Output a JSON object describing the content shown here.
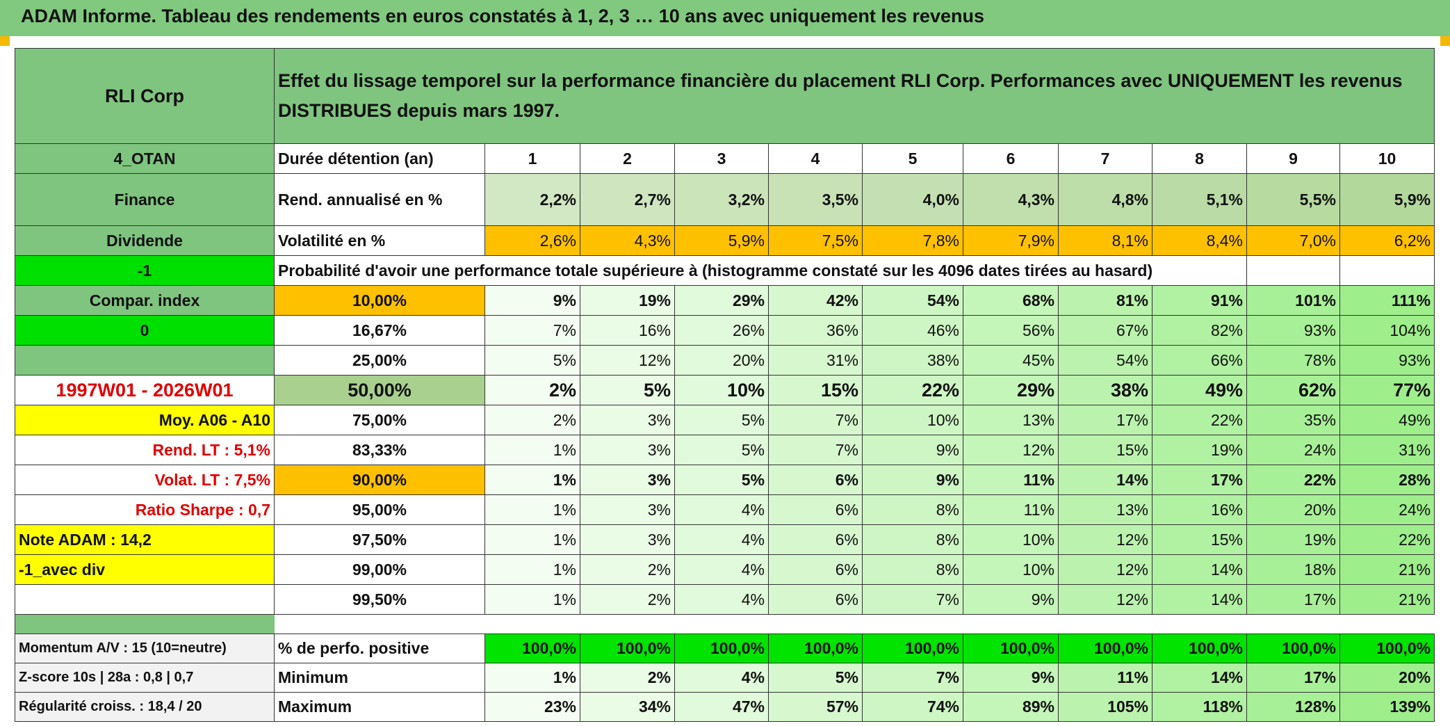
{
  "header": {
    "title": "ADAM Informe. Tableau des rendements en euros constatés à 1, 2, 3 … 10 ans avec uniquement les revenus"
  },
  "table": {
    "corner": "RLI Corp",
    "description": "Effet du lissage temporel sur la performance financière du placement RLI Corp. Performances avec UNIQUEMENT les revenus DISTRIBUES depuis mars 1997.",
    "rows": [
      {
        "side": "4_OTAN",
        "label": "Durée détention (an)",
        "cells": [
          "1",
          "2",
          "3",
          "4",
          "5",
          "6",
          "7",
          "8",
          "9",
          "10"
        ]
      },
      {
        "side": "Finance",
        "label": "Rend. annualisé en %",
        "cells": [
          "2,2%",
          "2,7%",
          "3,2%",
          "3,5%",
          "4,0%",
          "4,3%",
          "4,8%",
          "5,1%",
          "5,5%",
          "5,9%"
        ]
      },
      {
        "side": "Dividende",
        "label": "Volatilité en %",
        "cells": [
          "2,6%",
          "4,3%",
          "5,9%",
          "7,5%",
          "7,8%",
          "7,9%",
          "8,1%",
          "8,4%",
          "7,0%",
          "6,2%"
        ]
      },
      {
        "side": "-1",
        "label": "Probabilité d'avoir une performance totale supérieure à (histogramme constaté sur les 4096 dates tirées au hasard)"
      },
      {
        "side": "Compar. index",
        "label": "10,00%",
        "cells": [
          "9%",
          "19%",
          "29%",
          "42%",
          "54%",
          "68%",
          "81%",
          "91%",
          "101%",
          "111%"
        ]
      },
      {
        "side": "0",
        "label": "16,67%",
        "cells": [
          "7%",
          "16%",
          "26%",
          "36%",
          "46%",
          "56%",
          "67%",
          "82%",
          "93%",
          "104%"
        ]
      },
      {
        "side": null,
        "label": "25,00%",
        "cells": [
          "5%",
          "12%",
          "20%",
          "31%",
          "38%",
          "45%",
          "54%",
          "66%",
          "78%",
          "93%"
        ]
      },
      {
        "side": "1997W01 - 2026W01",
        "label": "50,00%",
        "cells": [
          "2%",
          "5%",
          "10%",
          "15%",
          "22%",
          "29%",
          "38%",
          "49%",
          "62%",
          "77%"
        ]
      },
      {
        "side": "Moy. A06 - A10",
        "label": "75,00%",
        "cells": [
          "2%",
          "3%",
          "5%",
          "7%",
          "10%",
          "13%",
          "17%",
          "22%",
          "35%",
          "49%"
        ]
      },
      {
        "side": "Rend. LT :   5,1%",
        "label": "83,33%",
        "cells": [
          "1%",
          "3%",
          "5%",
          "7%",
          "9%",
          "12%",
          "15%",
          "19%",
          "24%",
          "31%"
        ]
      },
      {
        "side": "Volat. LT :   7,5%",
        "label": "90,00%",
        "cells": [
          "1%",
          "3%",
          "5%",
          "6%",
          "9%",
          "11%",
          "14%",
          "17%",
          "22%",
          "28%"
        ]
      },
      {
        "side": "Ratio Sharpe :   0,7",
        "label": "95,00%",
        "cells": [
          "1%",
          "3%",
          "4%",
          "6%",
          "8%",
          "11%",
          "13%",
          "16%",
          "20%",
          "24%"
        ]
      },
      {
        "side": "Note ADAM : 14,2",
        "label": "97,50%",
        "cells": [
          "1%",
          "3%",
          "4%",
          "6%",
          "8%",
          "10%",
          "12%",
          "15%",
          "19%",
          "22%"
        ]
      },
      {
        "side": "-1_avec div",
        "label": "99,00%",
        "cells": [
          "1%",
          "2%",
          "4%",
          "6%",
          "8%",
          "10%",
          "12%",
          "14%",
          "18%",
          "21%"
        ]
      },
      {
        "side": null,
        "label": "99,50%",
        "cells": [
          "1%",
          "2%",
          "4%",
          "6%",
          "7%",
          "9%",
          "12%",
          "14%",
          "17%",
          "21%"
        ]
      }
    ]
  },
  "footer": {
    "rows": [
      {
        "side": "Momentum A/V : 15 (10=neutre)",
        "label": "% de perfo. positive",
        "cells": [
          "100,0%",
          "100,0%",
          "100,0%",
          "100,0%",
          "100,0%",
          "100,0%",
          "100,0%",
          "100,0%",
          "100,0%",
          "100,0%"
        ]
      },
      {
        "side": "Z-score 10s | 28a : 0,8 | 0,7",
        "label": "Minimum",
        "cells": [
          "1%",
          "2%",
          "4%",
          "5%",
          "7%",
          "9%",
          "11%",
          "14%",
          "17%",
          "20%"
        ]
      },
      {
        "side": "Régularité croiss. : 18,4 / 20",
        "label": "Maximum",
        "cells": [
          "23%",
          "34%",
          "47%",
          "57%",
          "74%",
          "89%",
          "105%",
          "118%",
          "128%",
          "139%"
        ]
      }
    ]
  }
}
